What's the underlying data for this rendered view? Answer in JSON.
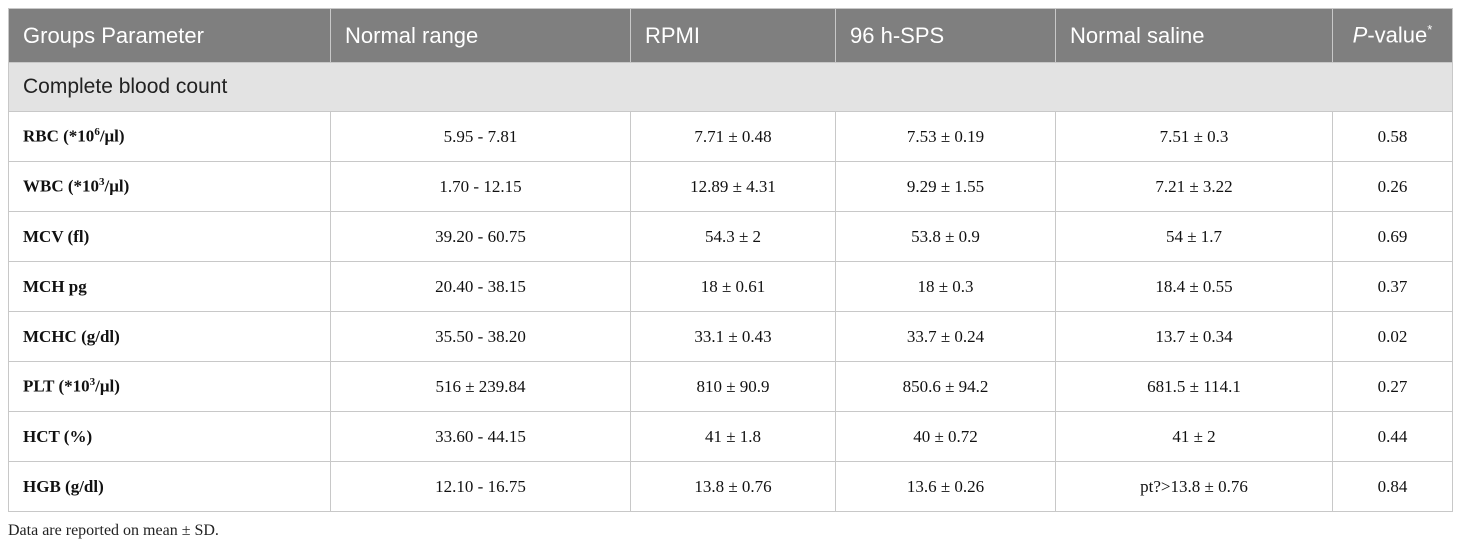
{
  "table": {
    "header": [
      "Groups Parameter",
      "Normal range",
      "RPMI",
      "96 h-SPS",
      "Normal saline",
      {
        "italic": "P",
        "text": "-value",
        "mark": "*"
      }
    ],
    "section": "Complete blood count",
    "rows": [
      [
        {
          "text": "RBC (*10",
          "sup": "6",
          "after": "/μl)"
        },
        "5.95 - 7.81",
        "7.71 ± 0.48",
        "7.53 ± 0.19",
        "7.51 ± 0.3",
        "0.58"
      ],
      [
        {
          "text": "WBC (*10",
          "sup": "3",
          "after": "/μl)"
        },
        "1.70 - 12.15",
        "12.89 ± 4.31",
        "9.29 ± 1.55",
        "7.21 ± 3.22",
        "0.26"
      ],
      [
        {
          "text": "MCV (fl)"
        },
        "39.20 - 60.75",
        "54.3 ± 2",
        "53.8 ± 0.9",
        "54 ± 1.7",
        "0.69"
      ],
      [
        {
          "text": "MCH pg"
        },
        "20.40 - 38.15",
        "18 ± 0.61",
        "18 ± 0.3",
        "18.4 ± 0.55",
        "0.37"
      ],
      [
        {
          "text": "MCHC (g/dl)"
        },
        "35.50 - 38.20",
        "33.1 ± 0.43",
        "33.7 ± 0.24",
        "13.7 ± 0.34",
        "0.02"
      ],
      [
        {
          "text": "PLT (*10",
          "sup": "3",
          "after": "/μl)"
        },
        "516 ± 239.84",
        "810 ± 90.9",
        "850.6 ± 94.2",
        "681.5 ± 114.1",
        "0.27"
      ],
      [
        {
          "text": "HCT (%)"
        },
        "33.60 - 44.15",
        "41 ± 1.8",
        "40 ± 0.72",
        "41 ± 2",
        "0.44"
      ],
      [
        {
          "text": "HGB (g/dl)"
        },
        "12.10 - 16.75",
        "13.8 ± 0.76",
        "13.6 ± 0.26",
        "pt?>13.8 ± 0.76",
        "0.84"
      ]
    ],
    "footnote": "Data are reported on mean ± SD."
  }
}
